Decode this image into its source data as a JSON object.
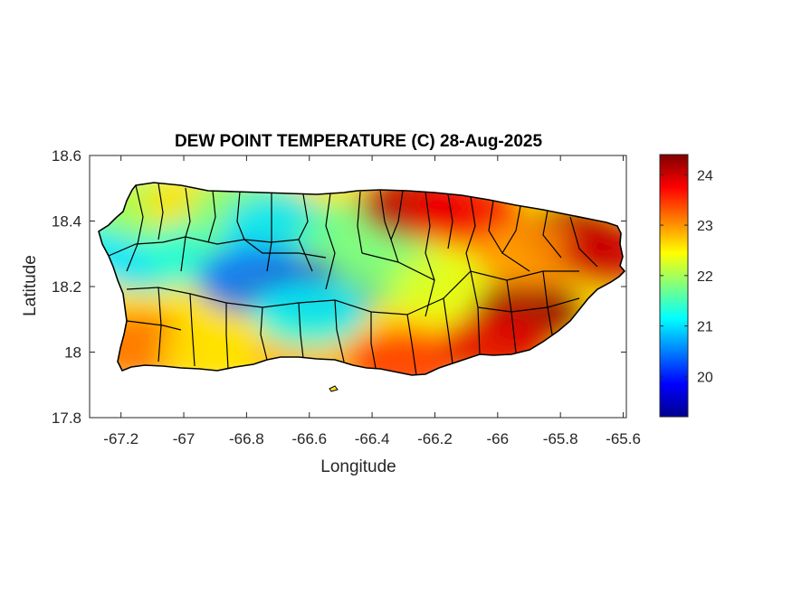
{
  "chart_data": {
    "type": "heatmap",
    "title": "DEW POINT TEMPERATURE (C) 28-Aug-2025",
    "xlabel": "Longitude",
    "ylabel": "Latitude",
    "xlim": [
      -67.3,
      -65.59
    ],
    "ylim": [
      17.8,
      18.6
    ],
    "xticks": [
      -67.2,
      -67,
      -66.8,
      -66.6,
      -66.4,
      -66.2,
      -66,
      -65.8,
      -65.6
    ],
    "xtick_labels": [
      "-67.2",
      "-67",
      "-66.8",
      "-66.6",
      "-66.4",
      "-66.2",
      "-66",
      "-65.8",
      "-65.6"
    ],
    "yticks": [
      17.8,
      18,
      18.2,
      18.4,
      18.6
    ],
    "ytick_labels": [
      "17.8",
      "18",
      "18.2",
      "18.4",
      "18.6"
    ],
    "colorbar": {
      "colormap": "jet",
      "range": [
        19.2,
        24.4
      ],
      "ticks": [
        20,
        21,
        22,
        23,
        24
      ],
      "tick_labels": [
        "20",
        "21",
        "22",
        "23",
        "24"
      ]
    },
    "grid": false,
    "field_samples": [
      {
        "lon": -67.22,
        "lat": 18.33,
        "value": 21.3
      },
      {
        "lon": -67.12,
        "lat": 18.29,
        "value": 21.0
      },
      {
        "lon": -67.1,
        "lat": 18.44,
        "value": 22.0
      },
      {
        "lon": -66.95,
        "lat": 18.45,
        "value": 22.6
      },
      {
        "lon": -66.95,
        "lat": 18.3,
        "value": 21.4
      },
      {
        "lon": -66.8,
        "lat": 18.44,
        "value": 21.8
      },
      {
        "lon": -66.7,
        "lat": 18.38,
        "value": 21.0
      },
      {
        "lon": -66.78,
        "lat": 18.22,
        "value": 20.4
      },
      {
        "lon": -66.56,
        "lat": 18.18,
        "value": 19.6
      },
      {
        "lon": -66.45,
        "lat": 18.36,
        "value": 21.7
      },
      {
        "lon": -66.35,
        "lat": 18.25,
        "value": 21.8
      },
      {
        "lon": -66.26,
        "lat": 18.45,
        "value": 24.1
      },
      {
        "lon": -66.1,
        "lat": 18.43,
        "value": 23.8
      },
      {
        "lon": -66.15,
        "lat": 18.2,
        "value": 22.3
      },
      {
        "lon": -65.9,
        "lat": 18.12,
        "value": 24.3
      },
      {
        "lon": -65.75,
        "lat": 18.35,
        "value": 24.2
      },
      {
        "lon": -65.9,
        "lat": 18.3,
        "value": 23.0
      },
      {
        "lon": -67.15,
        "lat": 18.02,
        "value": 23.2
      },
      {
        "lon": -66.9,
        "lat": 18.0,
        "value": 22.6
      },
      {
        "lon": -66.6,
        "lat": 17.99,
        "value": 22.8
      },
      {
        "lon": -66.3,
        "lat": 17.97,
        "value": 23.5
      },
      {
        "lon": -66.0,
        "lat": 18.02,
        "value": 23.9
      },
      {
        "lon": -66.6,
        "lat": 18.12,
        "value": 21.2
      },
      {
        "lon": -65.62,
        "lat": 18.3,
        "value": 24.0
      }
    ]
  }
}
